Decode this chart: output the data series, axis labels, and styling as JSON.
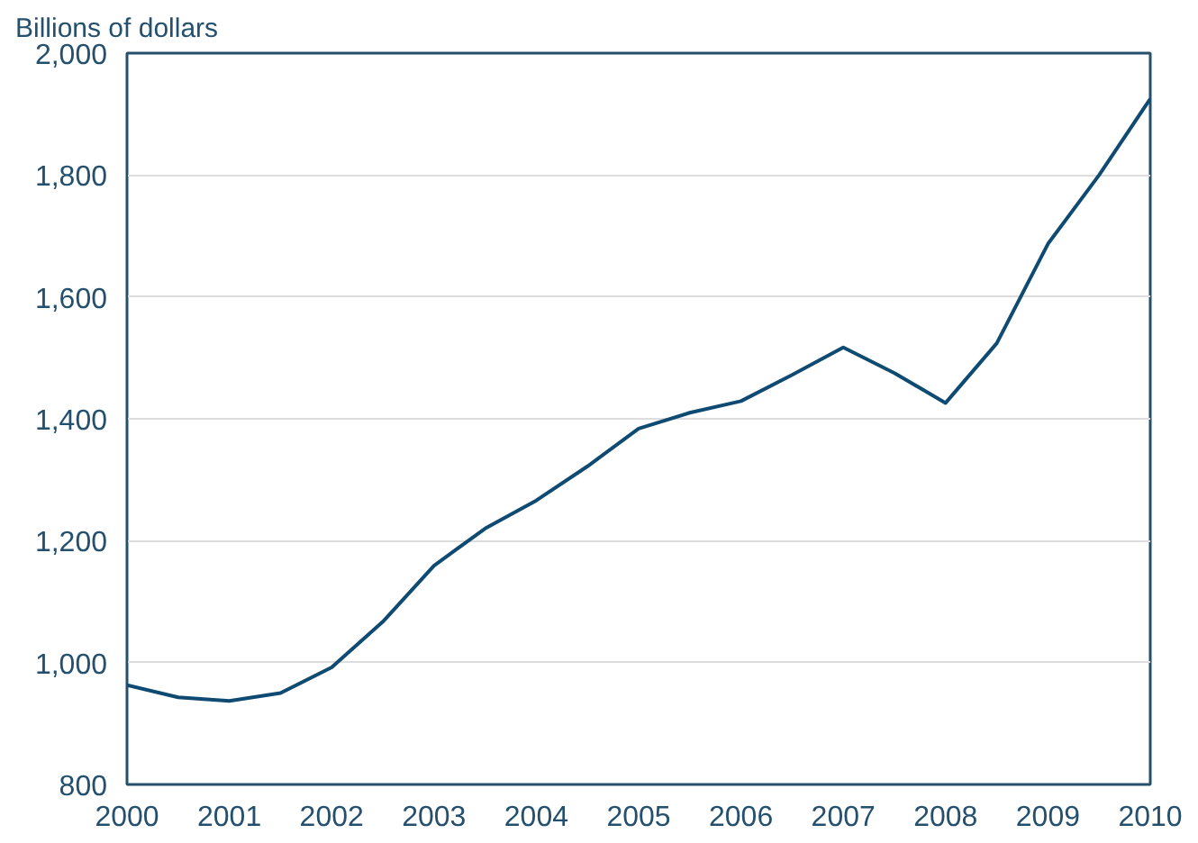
{
  "chart_data": {
    "type": "line",
    "ylabel": "Billions of dollars",
    "x": [
      2000,
      2000.5,
      2001,
      2001.5,
      2002,
      2002.5,
      2003,
      2003.5,
      2004,
      2004.5,
      2005,
      2005.5,
      2006,
      2006.5,
      2007,
      2007.5,
      2008,
      2008.5,
      2009,
      2009.5,
      2010
    ],
    "series": [
      {
        "color": "#0e4a72",
        "values": [
          963,
          943,
          937,
          950,
          992,
          1067,
          1159,
          1220,
          1266,
          1322,
          1384,
          1410,
          1429,
          1472,
          1517,
          1475,
          1426,
          1524,
          1687,
          1800,
          1925
        ]
      }
    ],
    "xlim": [
      2000,
      2010
    ],
    "xticks": [
      2000,
      2001,
      2002,
      2003,
      2004,
      2005,
      2006,
      2007,
      2008,
      2009,
      2010
    ],
    "ylim": [
      800,
      2000
    ],
    "yticks": [
      {
        "value": 800,
        "label": "800"
      },
      {
        "value": 1000,
        "label": "1,000"
      },
      {
        "value": 1200,
        "label": "1,200"
      },
      {
        "value": 1400,
        "label": "1,400"
      },
      {
        "value": 1600,
        "label": "1,600"
      },
      {
        "value": 1800,
        "label": "1,800"
      },
      {
        "value": 2000,
        "label": "2,000"
      }
    ],
    "grid": "y",
    "line_style": "solid"
  }
}
